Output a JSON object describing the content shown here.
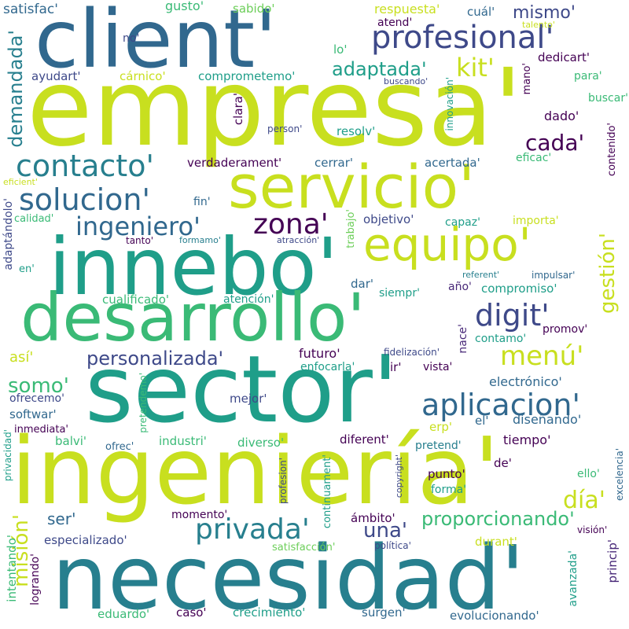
{
  "palette": {
    "yellow_green": "#c8df1f",
    "green": "#3aba76",
    "teal": "#1f9e89",
    "blue_teal": "#277f8e",
    "steel_blue": "#31688e",
    "indigo": "#3e4989",
    "purple": "#482878",
    "dark_purple": "#440154",
    "lime": "#6cce59"
  },
  "words": {
    "empresa": "empresa'",
    "ingenieria": "ingeniería'",
    "necesidad": "necesidad'",
    "sector": "sector'",
    "client": "client'",
    "innebo": "innebo'",
    "desarrollo": "desarrollo'",
    "servicio": "servicio'",
    "equipo": "equipo'",
    "profesional": "profesional'",
    "solucion": "solucion'",
    "contacto": "contacto'",
    "ingeniero": "ingeniero'",
    "zona": "zona'",
    "digit": "digit'",
    "menu": "menú'",
    "aplicacion": "aplicacion'",
    "privada": "privada'",
    "personalizada": "personalizada'",
    "proporcionando": "proporcionando'",
    "gestion": "gestión'",
    "mision": "misión'",
    "dia": "día'",
    "una": "una'",
    "somo": "somo'",
    "cada": "cada'",
    "adaptada": "adaptada'",
    "kit": "kit'",
    "mismo": "mismo'",
    "demandada": "demandada'",
    "respuesta": "respuesta'",
    "satisfac": "satisfac'",
    "gusto": "gusto'",
    "sabido": "sabido'",
    "cual": "cuál'",
    "atend": "atend'",
    "talento": "talento'",
    "no": "no'",
    "lo": "lo'",
    "dedicart": "dedicart'",
    "ayudart": "ayudart'",
    "carnico": "cárnico'",
    "comprometemo": "comprometemo'",
    "buscando": "buscando'",
    "para": "para'",
    "mano": "mano'",
    "buscar": "buscar'",
    "innovacion": "innovación'",
    "clara": "clara'",
    "person": "person'",
    "resolv": "resolv'",
    "dado": "dado'",
    "contenido": "contenido'",
    "verdaderament": "verdaderament'",
    "cerrar": "cerrar'",
    "acertada": "acertada'",
    "eficac": "eficac'",
    "eficient": "eficient'",
    "fin": "fin'",
    "calidad": "calidad'",
    "adaptandolo": "adaptándolo'",
    "trabajo": "trabajo'",
    "objetivo": "objetivo'",
    "capaz": "capaz'",
    "importa": "importa'",
    "tanto": "tanto'",
    "formamo": "formamo'",
    "atraccion": "atracción'",
    "en": "en'",
    "referent": "referent'",
    "impulsar": "impulsar'",
    "dar": "dar'",
    "ano": "año'",
    "compromiso": "compromiso'",
    "cualificado": "cualificado'",
    "atencion": "atención'",
    "siempr": "siempr'",
    "nace": "nace'",
    "contamo": "contamo'",
    "promov": "promov'",
    "asi": "así'",
    "futuro": "futuro'",
    "fidelizacion": "fidelización'",
    "enfocarla": "enfocarla'",
    "ir": "ir'",
    "vista": "vista'",
    "electronico": "electrónico'",
    "pretendemo": "pretendemo'",
    "ofrecemo": "ofrecemo'",
    "mejor": "mejor'",
    "softwar": "softwar'",
    "inmediata": "inmediata'",
    "erp": "erp'",
    "el": "el'",
    "disenando": "diseñando'",
    "privacidad": "privacidad'",
    "balvi": "balvi'",
    "ofrec": "ofrec'",
    "industri": "industri'",
    "diverso": "diverso'",
    "diferent": "diferent'",
    "pretend": "pretend'",
    "tiempo": "tiempo'",
    "profesion": "profesion'",
    "continuament": "continuament'",
    "copyright": "copyright'",
    "de": "de'",
    "excelencia": "excelencia'",
    "punto": "punto'",
    "ello": "ello'",
    "forma": "forma'",
    "ser": "ser'",
    "momento": "momento'",
    "ambito": "ámbito'",
    "vision": "visión'",
    "especializado": "especializado'",
    "satisfaccion": "satisfacción'",
    "durant": "durant'",
    "politica": "política'",
    "intentando": "intentando'",
    "logrando": "logrando'",
    "avanzada": "avanzada'",
    "princip": "princip'",
    "eduardo": "eduardo'",
    "caso": "caso'",
    "crecimiento": "crecimiento'",
    "surgen": "surgen'",
    "evolucionando": "evolucionando'"
  }
}
